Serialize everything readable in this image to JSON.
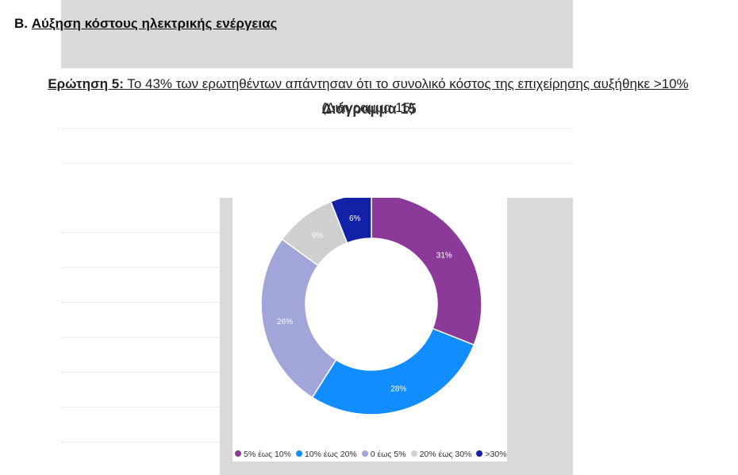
{
  "section": {
    "prefix": "B.",
    "title": "Αύξηση κόστους ηλεκτρικής ενέργειας"
  },
  "question": {
    "label": "Ερώτηση 5:",
    "text": " Το 43% των ερωτηθέντων απάντησαν ότι το συνολικό κόστος της επιχείρησης αυξήθηκε >10%",
    "reference": "(Διάγραμμα 15)"
  },
  "chart_data": {
    "type": "pie",
    "title": "Διάγραμμα 15",
    "donut": true,
    "legend_position": "bottom",
    "categories": [
      "5% έως 10%",
      "10% έως 20%",
      "0 έως 5%",
      "20% έως 30%",
      ">30%"
    ],
    "values": [
      31,
      28,
      26,
      9,
      6
    ],
    "labels": [
      "31%",
      "28%",
      "26%",
      "9%",
      "6%"
    ],
    "colors": [
      "#8b3a9a",
      "#118dff",
      "#a1a5d9",
      "#cfcfcf",
      "#1221a6"
    ]
  }
}
